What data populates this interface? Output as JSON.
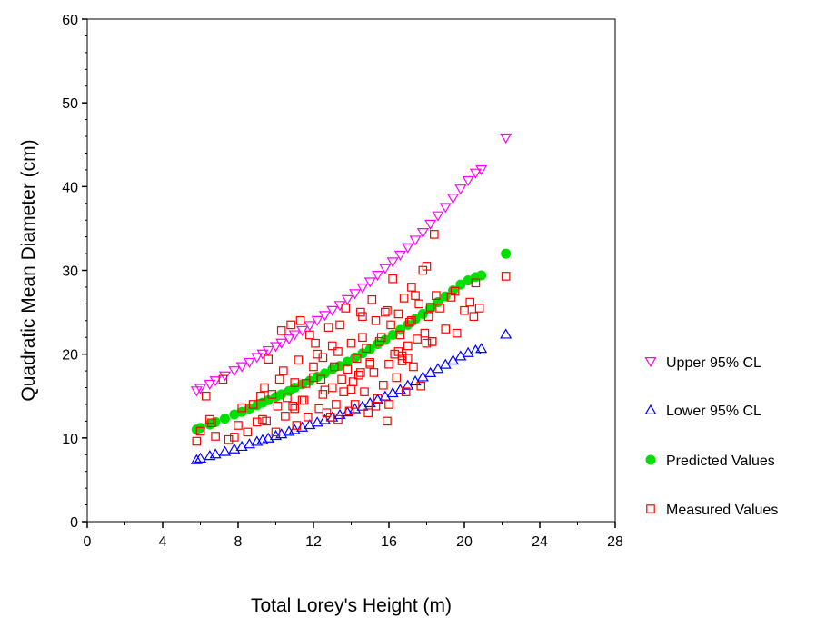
{
  "chart_data": {
    "type": "scatter",
    "xlabel": "Total Lorey's Height (m)",
    "ylabel": "Quadratic Mean Diameter (cm)",
    "xlim": [
      0,
      28
    ],
    "ylim": [
      0,
      60
    ],
    "xticks": [
      0,
      4,
      8,
      12,
      16,
      20,
      24,
      28
    ],
    "yticks": [
      0,
      10,
      20,
      30,
      40,
      50,
      60
    ],
    "grid": false,
    "legend_position": "right",
    "series": [
      {
        "name": "Upper 95% CL",
        "marker": "triangle-down",
        "color": "#ff00ff",
        "x": [
          5.8,
          6.0,
          6.5,
          6.8,
          7.3,
          7.8,
          8.2,
          8.6,
          9.0,
          9.3,
          9.6,
          10.0,
          10.3,
          10.7,
          11.0,
          11.4,
          11.8,
          12.2,
          12.6,
          13.0,
          13.4,
          13.8,
          14.2,
          14.6,
          15.0,
          15.4,
          15.8,
          16.2,
          16.6,
          17.0,
          17.4,
          17.8,
          18.2,
          18.6,
          19.0,
          19.4,
          19.8,
          20.2,
          20.6,
          20.9,
          22.2
        ],
        "y": [
          15.6,
          15.9,
          16.4,
          16.8,
          17.4,
          18.0,
          18.5,
          19.0,
          19.6,
          20.0,
          20.4,
          20.9,
          21.3,
          21.8,
          22.3,
          22.8,
          23.4,
          24.0,
          24.6,
          25.2,
          25.8,
          26.5,
          27.2,
          27.9,
          28.6,
          29.4,
          30.2,
          31.0,
          31.8,
          32.7,
          33.6,
          34.5,
          35.5,
          36.5,
          37.5,
          38.6,
          39.7,
          40.7,
          41.6,
          42.0,
          45.8
        ]
      },
      {
        "name": "Lower 95% CL",
        "marker": "triangle-up",
        "color": "#0000ff",
        "x": [
          5.8,
          6.0,
          6.5,
          6.8,
          7.3,
          7.8,
          8.2,
          8.6,
          9.0,
          9.3,
          9.6,
          10.0,
          10.3,
          10.7,
          11.0,
          11.4,
          11.8,
          12.2,
          12.6,
          13.0,
          13.4,
          13.8,
          14.2,
          14.6,
          15.0,
          15.4,
          15.8,
          16.2,
          16.6,
          17.0,
          17.4,
          17.8,
          18.2,
          18.6,
          19.0,
          19.4,
          19.8,
          20.2,
          20.6,
          20.9,
          22.2
        ],
        "y": [
          7.4,
          7.6,
          7.9,
          8.1,
          8.4,
          8.7,
          9.0,
          9.3,
          9.6,
          9.8,
          10.0,
          10.3,
          10.5,
          10.8,
          11.0,
          11.3,
          11.6,
          11.9,
          12.2,
          12.5,
          12.8,
          13.1,
          13.5,
          13.8,
          14.2,
          14.6,
          15.0,
          15.4,
          15.8,
          16.3,
          16.8,
          17.3,
          17.8,
          18.3,
          18.8,
          19.3,
          19.8,
          20.2,
          20.5,
          20.7,
          22.4
        ]
      },
      {
        "name": "Predicted Values",
        "marker": "circle",
        "color": "#00e000",
        "x": [
          5.8,
          6.0,
          6.5,
          6.8,
          7.3,
          7.8,
          8.2,
          8.6,
          9.0,
          9.3,
          9.6,
          10.0,
          10.3,
          10.7,
          11.0,
          11.4,
          11.8,
          12.2,
          12.6,
          13.0,
          13.4,
          13.8,
          14.2,
          14.6,
          15.0,
          15.4,
          15.8,
          16.2,
          16.6,
          17.0,
          17.4,
          17.8,
          18.2,
          18.6,
          19.0,
          19.4,
          19.8,
          20.2,
          20.6,
          20.9,
          22.2
        ],
        "y": [
          11.0,
          11.2,
          11.6,
          11.9,
          12.3,
          12.8,
          13.1,
          13.5,
          13.9,
          14.2,
          14.5,
          14.9,
          15.2,
          15.6,
          16.0,
          16.4,
          16.8,
          17.3,
          17.7,
          18.2,
          18.6,
          19.1,
          19.6,
          20.1,
          20.6,
          21.2,
          21.7,
          22.3,
          22.9,
          23.5,
          24.2,
          24.8,
          25.5,
          26.2,
          26.9,
          27.6,
          28.3,
          28.8,
          29.2,
          29.4,
          32.0
        ]
      },
      {
        "name": "Measured Values",
        "marker": "square",
        "color": "#ff0000",
        "x": [
          5.8,
          6.0,
          6.3,
          6.5,
          6.6,
          6.8,
          7.2,
          7.5,
          7.8,
          8.0,
          8.2,
          8.5,
          8.8,
          9.0,
          9.2,
          9.3,
          9.5,
          9.6,
          9.8,
          10.0,
          10.1,
          10.2,
          10.3,
          10.5,
          10.6,
          10.8,
          10.9,
          11.0,
          11.1,
          11.2,
          11.3,
          11.5,
          11.6,
          11.7,
          11.8,
          12.0,
          12.1,
          12.2,
          12.3,
          12.4,
          12.5,
          12.6,
          12.8,
          12.9,
          13.0,
          13.1,
          13.2,
          13.3,
          13.4,
          13.5,
          13.6,
          13.7,
          13.8,
          13.9,
          14.0,
          14.1,
          14.2,
          14.3,
          14.4,
          14.5,
          14.6,
          14.7,
          14.8,
          14.9,
          15.0,
          15.1,
          15.2,
          15.3,
          15.4,
          15.5,
          15.6,
          15.7,
          15.8,
          15.9,
          16.0,
          16.1,
          16.2,
          16.3,
          16.4,
          16.5,
          16.6,
          16.7,
          16.8,
          16.9,
          17.0,
          17.1,
          17.2,
          17.3,
          17.4,
          17.5,
          17.6,
          17.7,
          17.8,
          17.9,
          18.0,
          18.1,
          18.2,
          18.3,
          18.4,
          18.5,
          18.7,
          19.0,
          19.3,
          19.6,
          20.0,
          20.3,
          20.6,
          20.8,
          22.2,
          9.4,
          10.4,
          11.4,
          12.7,
          13.3,
          14.6,
          15.3,
          15.9,
          16.5,
          17.2,
          18.3,
          19.5,
          20.5,
          14.0,
          15.0,
          16.0,
          13.0,
          12.0,
          11.0,
          17.0,
          18.0,
          12.5,
          14.5,
          16.7
        ],
        "y": [
          9.6,
          10.8,
          15.0,
          12.2,
          11.8,
          10.2,
          17.0,
          9.8,
          10.1,
          11.5,
          13.6,
          10.7,
          14.0,
          11.9,
          15.0,
          12.2,
          12.0,
          19.4,
          15.2,
          10.7,
          13.8,
          17.0,
          22.8,
          12.6,
          14.8,
          23.5,
          13.8,
          16.6,
          11.5,
          19.3,
          24.0,
          14.5,
          16.5,
          12.5,
          22.3,
          18.5,
          21.3,
          20.0,
          13.5,
          17.0,
          19.6,
          15.7,
          23.2,
          12.5,
          16.0,
          18.5,
          14.0,
          20.3,
          23.5,
          17.0,
          15.5,
          25.5,
          18.2,
          13.2,
          21.3,
          16.7,
          14.0,
          19.5,
          17.5,
          25.0,
          22.0,
          15.5,
          20.7,
          13.0,
          19.0,
          26.5,
          17.8,
          24.0,
          14.7,
          21.5,
          22.0,
          16.3,
          25.0,
          12.0,
          18.8,
          23.5,
          29.0,
          20.0,
          17.2,
          24.8,
          22.3,
          19.2,
          26.7,
          15.5,
          21.0,
          23.8,
          28.0,
          18.5,
          27.0,
          21.8,
          26.0,
          16.2,
          30.0,
          22.5,
          30.5,
          24.5,
          25.6,
          21.5,
          34.3,
          27.0,
          25.5,
          23.0,
          26.8,
          22.5,
          25.2,
          26.2,
          28.5,
          25.5,
          29.3,
          16.0,
          18.0,
          14.5,
          13.0,
          12.2,
          24.5,
          13.8,
          25.2,
          20.3,
          24.0,
          21.5,
          27.5,
          24.5,
          15.8,
          18.8,
          14.0,
          21.0,
          17.2,
          13.5,
          19.5,
          21.3,
          15.2,
          17.8,
          19.8
        ]
      }
    ]
  }
}
